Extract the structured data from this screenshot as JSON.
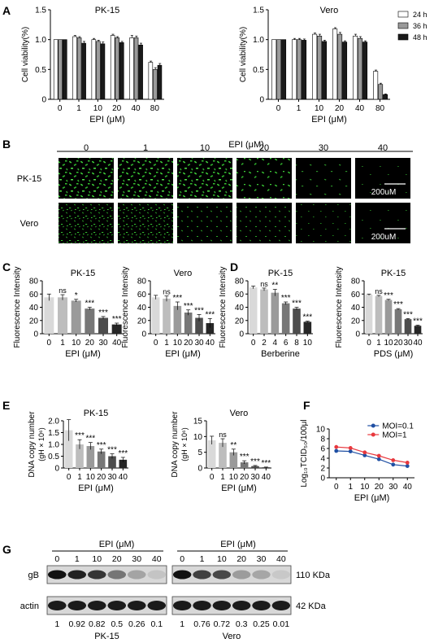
{
  "panels": {
    "A": "A",
    "B": "B",
    "C": "C",
    "D": "D",
    "E": "E",
    "F": "F",
    "G": "G"
  },
  "colors": {
    "green_cells": "#39c534",
    "bar_gray": "#9a9a9a",
    "line_blue": "#1f4fa3",
    "line_red": "#e8383d"
  },
  "chart_data": [
    {
      "id": "A1",
      "panel": "A",
      "type": "bar",
      "title": "PK-15",
      "ylabel": "Cell viability(%)",
      "xlabel": "EPI (μM)",
      "categories": [
        "0",
        "1",
        "10",
        "20",
        "40",
        "80"
      ],
      "ylim": [
        0,
        1.5
      ],
      "yticks": [
        "0",
        "0.5",
        "1.0",
        "1.5"
      ],
      "series": [
        {
          "name": "24 h",
          "values": [
            1.0,
            1.05,
            1.0,
            1.07,
            1.03,
            0.62
          ],
          "errors": [
            0,
            0.02,
            0.02,
            0.02,
            0.04,
            0.02
          ]
        },
        {
          "name": "36 h",
          "values": [
            1.0,
            1.03,
            0.97,
            1.03,
            1.03,
            0.5
          ],
          "errors": [
            0,
            0.02,
            0.02,
            0.02,
            0.03,
            0.03
          ]
        },
        {
          "name": "48 h",
          "values": [
            1.0,
            0.94,
            0.93,
            0.95,
            0.91,
            0.57
          ],
          "errors": [
            0,
            0.03,
            0.03,
            0.02,
            0.03,
            0.03
          ]
        }
      ]
    },
    {
      "id": "A2",
      "panel": "A",
      "type": "bar",
      "title": "Vero",
      "ylabel": "Cell viability(%)",
      "xlabel": "EPI (μM)",
      "categories": [
        "0",
        "1",
        "10",
        "20",
        "40",
        "80"
      ],
      "ylim": [
        0,
        1.5
      ],
      "yticks": [
        "0",
        "0.5",
        "1.0",
        "1.5"
      ],
      "legend": "top-right",
      "series": [
        {
          "name": "24 h",
          "values": [
            1.0,
            1.0,
            1.09,
            1.18,
            1.06,
            0.47
          ],
          "errors": [
            0,
            0.02,
            0.02,
            0.02,
            0.03,
            0.02
          ]
        },
        {
          "name": "36 h",
          "values": [
            1.0,
            1.0,
            1.06,
            1.09,
            1.02,
            0.25
          ],
          "errors": [
            0,
            0.02,
            0.03,
            0.03,
            0.03,
            0.02
          ]
        },
        {
          "name": "48 h",
          "values": [
            1.0,
            0.99,
            0.97,
            0.96,
            0.96,
            0.08
          ],
          "errors": [
            0,
            0.02,
            0.02,
            0.02,
            0.02,
            0.01
          ]
        }
      ]
    },
    {
      "id": "C1",
      "panel": "C",
      "type": "bar",
      "title": "PK-15",
      "ylabel": "Fluorescence Intensity",
      "xlabel": "EPI (μM)",
      "categories": [
        "0",
        "1",
        "10",
        "20",
        "30",
        "40"
      ],
      "ylim": [
        0,
        80
      ],
      "yticks": [
        "0",
        "20",
        "40",
        "60",
        "80"
      ],
      "values": [
        55,
        55,
        50,
        38,
        24,
        14
      ],
      "errors": [
        5,
        4,
        2,
        2,
        2,
        2
      ],
      "sig": [
        "",
        "ns",
        "*",
        "***",
        "***",
        "***"
      ]
    },
    {
      "id": "C2",
      "panel": "C",
      "type": "bar",
      "title": "Vero",
      "ylabel": "Fluorescence Intensity",
      "xlabel": "EPI (μM)",
      "categories": [
        "0",
        "1",
        "10",
        "20",
        "30",
        "40"
      ],
      "ylim": [
        0,
        80
      ],
      "yticks": [
        "0",
        "20",
        "40",
        "60",
        "80"
      ],
      "values": [
        55,
        53,
        42,
        32,
        24,
        16
      ],
      "errors": [
        3,
        4,
        6,
        4,
        5,
        7
      ],
      "sig": [
        "",
        "ns",
        "***",
        "***",
        "***",
        "***"
      ]
    },
    {
      "id": "D1",
      "panel": "D",
      "type": "bar",
      "title": "PK-15",
      "ylabel": "Fluorescence Intensity",
      "xlabel": "Berberine",
      "categories": [
        "0",
        "2",
        "4",
        "6",
        "8",
        "10"
      ],
      "ylim": [
        0,
        80
      ],
      "yticks": [
        "0",
        "20",
        "40",
        "60",
        "80"
      ],
      "values": [
        70,
        67,
        62,
        46,
        38,
        18
      ],
      "errors": [
        2,
        2,
        5,
        2,
        2,
        1
      ],
      "sig": [
        "",
        "ns",
        "**",
        "***",
        "***",
        "***"
      ]
    },
    {
      "id": "D2",
      "panel": "D",
      "type": "bar",
      "title": "PK-15",
      "ylabel": "Fluorescence Intensity",
      "xlabel": "PDS (μM)",
      "categories": [
        "0",
        "1",
        "10",
        "20",
        "30",
        "40"
      ],
      "ylim": [
        0,
        80
      ],
      "yticks": [
        "0",
        "20",
        "40",
        "60",
        "80"
      ],
      "values": [
        59,
        57,
        51,
        37,
        22,
        12
      ],
      "errors": [
        1,
        1,
        1,
        1,
        1,
        1
      ],
      "sig": [
        "",
        "ns",
        "***",
        "***",
        "***",
        "***"
      ]
    },
    {
      "id": "E1",
      "panel": "E",
      "type": "bar",
      "title": "PK-15",
      "ylabel": "DNA copy number",
      "ylabel2": "(gH × 10⁶)",
      "xlabel": "EPI (μM)",
      "categories": [
        "0",
        "1",
        "10",
        "20",
        "30",
        "40"
      ],
      "ylim": [
        0,
        2.0
      ],
      "yticks": [
        "0",
        "0.5",
        "1.0",
        "1.5",
        "2.0"
      ],
      "values": [
        1.6,
        1.0,
        0.93,
        0.7,
        0.5,
        0.35
      ],
      "errors": [
        0.45,
        0.2,
        0.15,
        0.1,
        0.1,
        0.1
      ],
      "sig": [
        "",
        "***",
        "***",
        "***",
        "***",
        "***"
      ]
    },
    {
      "id": "E2",
      "panel": "E",
      "type": "bar",
      "title": "Vero",
      "ylabel": "DNA copy number",
      "ylabel2": "(gH × 10⁶)",
      "xlabel": "EPI (μM)",
      "categories": [
        "0",
        "1",
        "10",
        "20",
        "30",
        "40"
      ],
      "ylim": [
        0,
        15
      ],
      "yticks": [
        "0",
        "5",
        "10",
        "15"
      ],
      "values": [
        8.8,
        8.0,
        5.0,
        1.8,
        0.6,
        0.2
      ],
      "errors": [
        1.3,
        1.3,
        1.0,
        0.5,
        0.2,
        0.1
      ],
      "sig": [
        "",
        "ns",
        "**",
        "***",
        "***",
        "***"
      ]
    },
    {
      "id": "F",
      "panel": "F",
      "type": "line",
      "ylabel": "Log₁₀TCID₅₀/100μl",
      "xlabel": "EPI (μM)",
      "categories": [
        "0",
        "1",
        "10",
        "20",
        "30",
        "40"
      ],
      "ylim": [
        0,
        10
      ],
      "yticks": [
        "0",
        "2",
        "4",
        "6",
        "8",
        "10"
      ],
      "legend": "top-right",
      "series": [
        {
          "name": "MOI=0.1",
          "color": "#1f4fa3",
          "values": [
            5.5,
            5.4,
            4.6,
            3.8,
            2.7,
            2.4
          ]
        },
        {
          "name": "MOI=1",
          "color": "#e8383d",
          "values": [
            6.3,
            6.1,
            5.2,
            4.5,
            3.6,
            3.1
          ]
        }
      ]
    }
  ],
  "microscopy": {
    "title": "EPI (μM)",
    "columns": [
      "0",
      "1",
      "10",
      "20",
      "30",
      "40"
    ],
    "rows": [
      "PK-15",
      "Vero"
    ],
    "scale_bar": "200uM"
  },
  "blot": {
    "title": "EPI (μM)",
    "lanes": [
      "0",
      "1",
      "10",
      "20",
      "30",
      "40"
    ],
    "bands": [
      "gB",
      "actin"
    ],
    "sizes": [
      "110 KDa",
      "42 KDa"
    ],
    "groups": [
      {
        "name": "PK-15",
        "ratios": [
          "1",
          "0.92",
          "0.82",
          "0.5",
          "0.26",
          "0.1"
        ]
      },
      {
        "name": "Vero",
        "ratios": [
          "1",
          "0.76",
          "0.72",
          "0.3",
          "0.25",
          "0.01"
        ]
      }
    ]
  }
}
